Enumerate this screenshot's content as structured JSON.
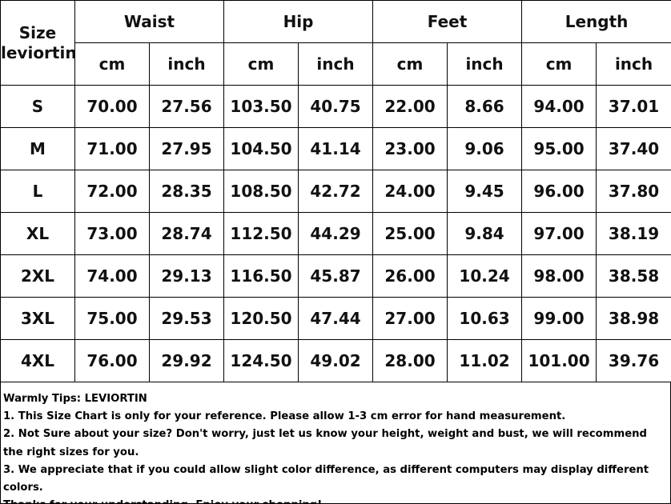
{
  "header": {
    "size_col": "Size\nleviortin",
    "groups": [
      "Waist",
      "Hip",
      "Feet",
      "Length"
    ],
    "units": [
      "cm",
      "inch",
      "cm",
      "inch",
      "cm",
      "inch",
      "cm",
      "inch"
    ]
  },
  "rows": [
    {
      "size": "S",
      "values": [
        "70.00",
        "27.56",
        "103.50",
        "40.75",
        "22.00",
        "8.66",
        "94.00",
        "37.01"
      ]
    },
    {
      "size": "M",
      "values": [
        "71.00",
        "27.95",
        "104.50",
        "41.14",
        "23.00",
        "9.06",
        "95.00",
        "37.40"
      ]
    },
    {
      "size": "L",
      "values": [
        "72.00",
        "28.35",
        "108.50",
        "42.72",
        "24.00",
        "9.45",
        "96.00",
        "37.80"
      ]
    },
    {
      "size": "XL",
      "values": [
        "73.00",
        "28.74",
        "112.50",
        "44.29",
        "25.00",
        "9.84",
        "97.00",
        "38.19"
      ]
    },
    {
      "size": "2XL",
      "values": [
        "74.00",
        "29.13",
        "116.50",
        "45.87",
        "26.00",
        "10.24",
        "98.00",
        "38.58"
      ]
    },
    {
      "size": "3XL",
      "values": [
        "75.00",
        "29.53",
        "120.50",
        "47.44",
        "27.00",
        "10.63",
        "99.00",
        "38.98"
      ]
    },
    {
      "size": "4XL",
      "values": [
        "76.00",
        "29.92",
        "124.50",
        "49.02",
        "28.00",
        "11.02",
        "101.00",
        "39.76"
      ]
    }
  ],
  "tips": [
    "Warmly Tips: LEVIORTIN",
    "1. This Size Chart is only for your reference. Please allow 1-3 cm error for hand measurement.",
    "2. Not Sure about your size? Don't worry, just let us know your height, weight and bust, we will recommend the right sizes for you.",
    "3. We appreciate that if you could allow slight color difference, as different computers may display different colors.",
    "Thanks for your understanding. Enjoy your shopping!"
  ]
}
